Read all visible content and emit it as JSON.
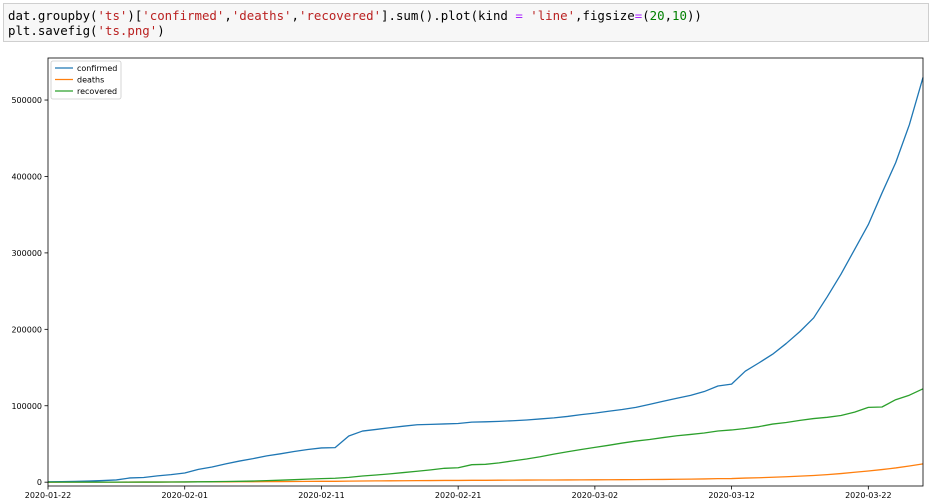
{
  "code_cell": {
    "line1": {
      "p1": "dat.groupby(",
      "p2": "'ts'",
      "p3": ")[",
      "p4": "'confirmed'",
      "p5": ",",
      "p6": "'deaths'",
      "p7": ",",
      "p8": "'recovered'",
      "p9": "].sum().plot(kind ",
      "p10": "=",
      "p11": " ",
      "p12": "'line'",
      "p13": ",figsize",
      "p14": "=",
      "p15": "(",
      "p16": "20",
      "p17": ",",
      "p18": "10",
      "p19": "))"
    },
    "line2": {
      "p1": "plt.savefig(",
      "p2": "'ts.png'",
      "p3": ")"
    }
  },
  "chart_data": {
    "type": "line",
    "xlim": [
      "2020-01-22",
      "2020-03-26"
    ],
    "ylim": [
      -5000,
      555000
    ],
    "x_ticks": [
      "2020-01-22",
      "2020-02-01",
      "2020-02-11",
      "2020-02-21",
      "2020-03-02",
      "2020-03-12",
      "2020-03-22"
    ],
    "y_ticks": [
      0,
      100000,
      200000,
      300000,
      400000,
      500000
    ],
    "legend_position": "upper-left",
    "grid": false,
    "x": [
      "2020-01-22",
      "2020-01-23",
      "2020-01-24",
      "2020-01-25",
      "2020-01-26",
      "2020-01-27",
      "2020-01-28",
      "2020-01-29",
      "2020-01-30",
      "2020-01-31",
      "2020-02-01",
      "2020-02-02",
      "2020-02-03",
      "2020-02-04",
      "2020-02-05",
      "2020-02-06",
      "2020-02-07",
      "2020-02-08",
      "2020-02-09",
      "2020-02-10",
      "2020-02-11",
      "2020-02-12",
      "2020-02-13",
      "2020-02-14",
      "2020-02-15",
      "2020-02-16",
      "2020-02-17",
      "2020-02-18",
      "2020-02-19",
      "2020-02-20",
      "2020-02-21",
      "2020-02-22",
      "2020-02-23",
      "2020-02-24",
      "2020-02-25",
      "2020-02-26",
      "2020-02-27",
      "2020-02-28",
      "2020-02-29",
      "2020-03-01",
      "2020-03-02",
      "2020-03-03",
      "2020-03-04",
      "2020-03-05",
      "2020-03-06",
      "2020-03-07",
      "2020-03-08",
      "2020-03-09",
      "2020-03-10",
      "2020-03-11",
      "2020-03-12",
      "2020-03-13",
      "2020-03-14",
      "2020-03-15",
      "2020-03-16",
      "2020-03-17",
      "2020-03-18",
      "2020-03-19",
      "2020-03-20",
      "2020-03-21",
      "2020-03-22",
      "2020-03-23",
      "2020-03-24",
      "2020-03-25",
      "2020-03-26"
    ],
    "series": [
      {
        "name": "confirmed",
        "color": "#1f77b4",
        "values": [
          555,
          654,
          941,
          1434,
          2118,
          2927,
          5578,
          6166,
          8234,
          9927,
          12038,
          16787,
          19881,
          23892,
          27635,
          30794,
          34391,
          37120,
          40150,
          42762,
          44802,
          45221,
          60368,
          66885,
          69030,
          71224,
          73258,
          75136,
          75639,
          76197,
          76819,
          78572,
          78958,
          79561,
          80406,
          81388,
          82746,
          84112,
          86011,
          88369,
          90306,
          92840,
          95120,
          97886,
          101800,
          105836,
          109835,
          113582,
          118582,
          125865,
          128343,
          145193,
          156099,
          167447,
          181546,
          197168,
          214915,
          242713,
          272167,
          304528,
          337020,
          378287,
          417966,
          467594,
          529591
        ]
      },
      {
        "name": "deaths",
        "color": "#ff7f0e",
        "values": [
          17,
          18,
          26,
          42,
          56,
          82,
          131,
          133,
          171,
          213,
          259,
          362,
          426,
          492,
          564,
          634,
          719,
          806,
          906,
          1013,
          1113,
          1118,
          1371,
          1523,
          1666,
          1770,
          1868,
          2007,
          2122,
          2247,
          2251,
          2458,
          2469,
          2629,
          2708,
          2770,
          2814,
          2872,
          2941,
          2996,
          3085,
          3160,
          3254,
          3348,
          3460,
          3558,
          3802,
          3988,
          4262,
          4615,
          4720,
          5404,
          5819,
          6440,
          7126,
          7905,
          8733,
          9867,
          11299,
          12973,
          14623,
          16497,
          18615,
          21181,
          23970
        ]
      },
      {
        "name": "recovered",
        "color": "#2ca02c",
        "values": [
          28,
          30,
          36,
          39,
          52,
          61,
          107,
          126,
          143,
          222,
          284,
          472,
          623,
          852,
          1124,
          1487,
          2011,
          2616,
          3244,
          3946,
          4683,
          5150,
          6295,
          8058,
          9395,
          10865,
          12583,
          14352,
          16121,
          18177,
          18890,
          22886,
          23394,
          25227,
          27905,
          30384,
          33277,
          36711,
          39782,
          42716,
          45602,
          48228,
          51170,
          53796,
          55865,
          58358,
          60694,
          62494,
          64404,
          67003,
          68324,
          70251,
          72624,
          76034,
          78088,
          80840,
          83207,
          84854,
          87256,
          91692,
          97899,
          98351,
          107890,
          113787,
          122150
        ]
      }
    ]
  }
}
